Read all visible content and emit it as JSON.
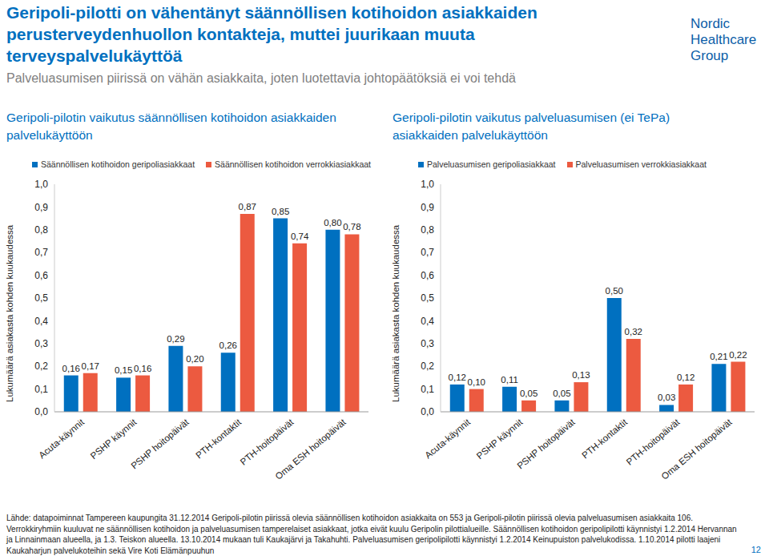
{
  "header": {
    "title": "Geripoli-pilotti on vähentänyt säännöllisen kotihoidon asiakkaiden perusterveydenhuollon kontakteja, muttei juurikaan muuta terveyspalvelukäyttöä",
    "subtitle": "Palveluasumisen piirissä on vähän asiakkaita, joten luotettavia johtopäätöksiä ei voi tehdä"
  },
  "logo": [
    "Nordic",
    "Healthcare",
    "Group"
  ],
  "chart_data": [
    {
      "type": "bar",
      "title": "Geripoli-pilotin vaikutus säännöllisen kotihoidon asiakkaiden palvelukäyttöön",
      "y_label": "Lukumäärä asiakasta kohden kuukaudessa",
      "categories": [
        "Acuta-käynnit",
        "PSHP käynnit",
        "PSHP hoitopäivät",
        "PTH-kontaktit",
        "PTH-hoitopäivät",
        "Oma ESH hoitopäivät"
      ],
      "series": [
        {
          "name": "Säännöllisen kotihoidon geripoliasiakkaat",
          "color": "#0070c0",
          "values": [
            0.16,
            0.15,
            0.29,
            0.26,
            0.85,
            0.8
          ],
          "value_labels": [
            "0,16",
            "0,15",
            "0,29",
            "0,26",
            "0,85",
            "0,80"
          ]
        },
        {
          "name": "Säännöllisen kotihoidon verrokkiasiakkaat",
          "color": "#ec5a40",
          "values": [
            0.17,
            0.16,
            0.2,
            0.87,
            0.74,
            0.78
          ],
          "value_labels": [
            "0,17",
            "0,16",
            "0,20",
            "0,87",
            "0,74",
            "0,78"
          ]
        }
      ],
      "ylim": [
        0,
        1
      ],
      "yticks": [
        {
          "value": 0,
          "label": "0,0"
        },
        {
          "value": 0.1,
          "label": "0,1"
        },
        {
          "value": 0.2,
          "label": "0,2"
        },
        {
          "value": 0.3,
          "label": "0,3"
        },
        {
          "value": 0.4,
          "label": "0,4"
        },
        {
          "value": 0.5,
          "label": "0,5"
        },
        {
          "value": 0.6,
          "label": "0,6"
        },
        {
          "value": 0.7,
          "label": "0,7"
        },
        {
          "value": 0.8,
          "label": "0,8"
        },
        {
          "value": 0.9,
          "label": "0,9"
        },
        {
          "value": 1,
          "label": "1,0"
        }
      ],
      "data_labels": true,
      "legend": "top",
      "grid": false
    },
    {
      "type": "bar",
      "title": "Geripoli-pilotin vaikutus palveluasumisen (ei TePa) asiakkaiden palvelukäyttöön",
      "y_label": "Lukumäärä asiakasta kohden kuukaudessa",
      "categories": [
        "Acuta-käynnit",
        "PSHP käynnit",
        "PSHP hoitopäivät",
        "PTH-kontaktit",
        "PTH-hoitopäivät",
        "Oma ESH hoitopäivät"
      ],
      "series": [
        {
          "name": "Palveluasumisen geripoliasiakkaat",
          "color": "#0070c0",
          "values": [
            0.12,
            0.11,
            0.05,
            0.5,
            0.03,
            0.21
          ],
          "value_labels": [
            "0,12",
            "0,11",
            "0,05",
            "0,50",
            "0,03",
            "0,21"
          ]
        },
        {
          "name": "Palveluasumisen verrokkiasiakkaat",
          "color": "#ec5a40",
          "values": [
            0.1,
            0.05,
            0.13,
            0.32,
            0.12,
            0.22
          ],
          "value_labels": [
            "0,10",
            "0,05",
            "0,13",
            "0,32",
            "0,12",
            "0,22"
          ]
        }
      ],
      "ylim": [
        0,
        1
      ],
      "yticks": [
        {
          "value": 0,
          "label": "0,0"
        },
        {
          "value": 0.1,
          "label": "0,1"
        },
        {
          "value": 0.2,
          "label": "0,2"
        },
        {
          "value": 0.3,
          "label": "0,3"
        },
        {
          "value": 0.4,
          "label": "0,4"
        },
        {
          "value": 0.5,
          "label": "0,5"
        },
        {
          "value": 0.6,
          "label": "0,6"
        },
        {
          "value": 0.7,
          "label": "0,7"
        },
        {
          "value": 0.8,
          "label": "0,8"
        },
        {
          "value": 0.9,
          "label": "0,9"
        },
        {
          "value": 1,
          "label": "1,0"
        }
      ],
      "data_labels": true,
      "legend": "top",
      "grid": false
    }
  ],
  "footnote": "Lähde: datapoiminnat Tampereen kaupungita 31.12.2014 Geripoli-pilotin piirissä olevia säännöllisen kotihoidon asiakkaita on 553 ja Geripoli-pilotin piirissä olevia palveluasumisen asiakkaita 106. Verrokkiryhmiin kuuluvat ne säännöllisen kotihoidon ja palveluasumisen tamperelaiset asiakkaat, jotka eivät kuulu Geripolin pilottialueille. Säännöllisen kotihoidon geripolipilotti käynnistyi 1.2.2014 Hervannan ja Linnainmaan alueella, ja 1.3. Teiskon alueella. 13.10.2014 mukaan tuli Kaukajärvi ja Takahuhti. Palveluasumisen geripolipilotti käynnistyi 1.2.2014 Keinupuiston palvelukodissa. 1.10.2014 pilotti laajeni Kaukaharjun palvelukoteihin sekä Vire Koti Elämänpuuhun",
  "page": 12
}
